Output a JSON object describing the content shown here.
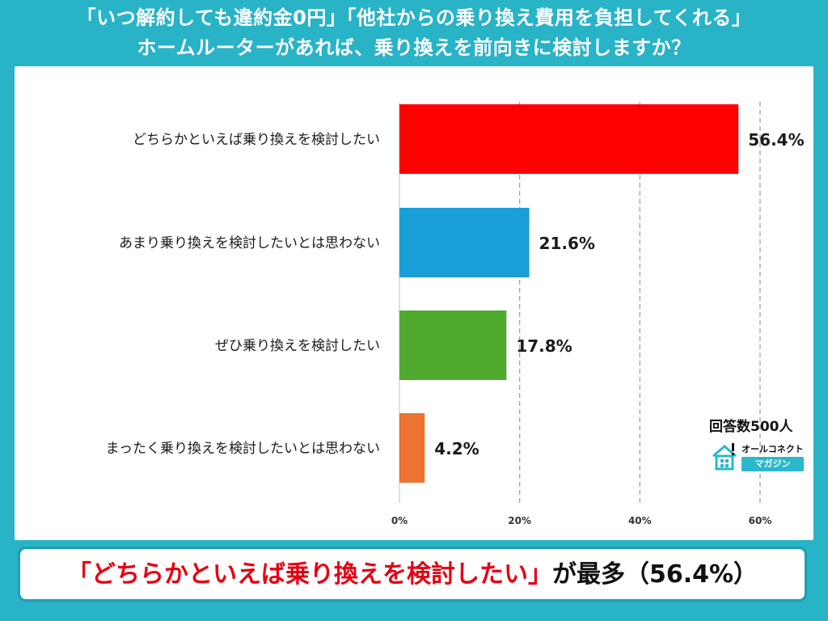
{
  "header": {
    "line1": "「いつ解約しても違約金0円」「他社からの乗り換え費用を負担してくれる」",
    "line2": "ホームルーターがあれば、乗り換えを前向きに検討しますか？"
  },
  "chart_data": {
    "type": "bar",
    "orientation": "horizontal",
    "categories": [
      "どちらかといえば乗り換えを検討したい",
      "あまり乗り換えを検討したいとは思わない",
      "ぜひ乗り換えを検討したい",
      "まったく乗り換えを検討したいとは思わない"
    ],
    "values": [
      56.4,
      21.6,
      17.8,
      4.2
    ],
    "value_labels": [
      "56.4%",
      "21.6%",
      "17.8%",
      "4.2%"
    ],
    "colors": [
      "#ff0000",
      "#1a9ed8",
      "#4faa2e",
      "#ec7332"
    ],
    "xlim": [
      0,
      60
    ],
    "x_ticks": [
      0,
      20,
      40,
      60
    ],
    "x_tick_labels": [
      "0%",
      "20%",
      "40%",
      "60%"
    ],
    "grid": "vertical dashed",
    "title": "",
    "xlabel": "",
    "ylabel": ""
  },
  "note": "回答数500人",
  "brand": {
    "top": "オールコネクト",
    "bottom": "マガジン"
  },
  "footer": {
    "highlight": "「どちらかといえば乗り換えを検討したい」",
    "rest": "が最多（56.4%）"
  }
}
